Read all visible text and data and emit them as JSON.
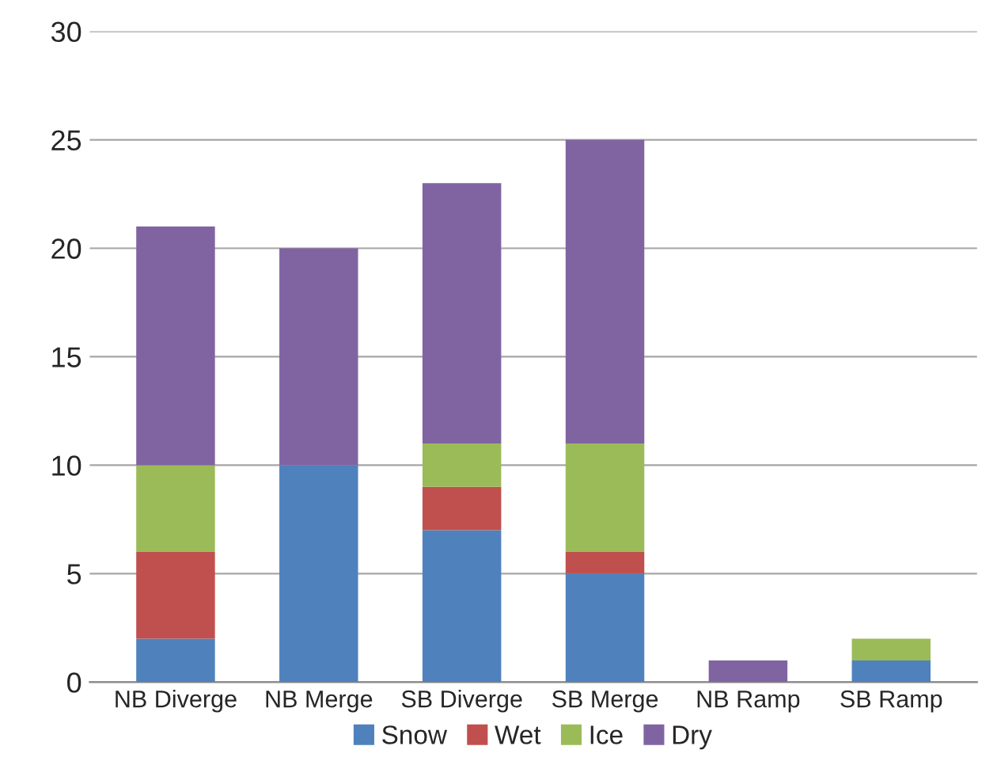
{
  "chart_data": {
    "type": "bar",
    "stacked": true,
    "categories": [
      "NB Diverge",
      "NB Merge",
      "SB Diverge",
      "SB Merge",
      "NB Ramp",
      "SB Ramp"
    ],
    "series": [
      {
        "name": "Snow",
        "color": "#4f81bd",
        "values": [
          2,
          10,
          7,
          5,
          0,
          1
        ]
      },
      {
        "name": "Wet",
        "color": "#c0504d",
        "values": [
          4,
          0,
          2,
          1,
          0,
          0
        ]
      },
      {
        "name": "Ice",
        "color": "#9bbb59",
        "values": [
          4,
          0,
          2,
          5,
          0,
          1
        ]
      },
      {
        "name": "Dry",
        "color": "#8064a2",
        "values": [
          11,
          10,
          12,
          14,
          1,
          0
        ]
      }
    ],
    "ylim": [
      0,
      30
    ],
    "yticks": [
      0,
      5,
      10,
      15,
      20,
      25,
      30
    ],
    "grid": "y",
    "legend": "bottom"
  }
}
